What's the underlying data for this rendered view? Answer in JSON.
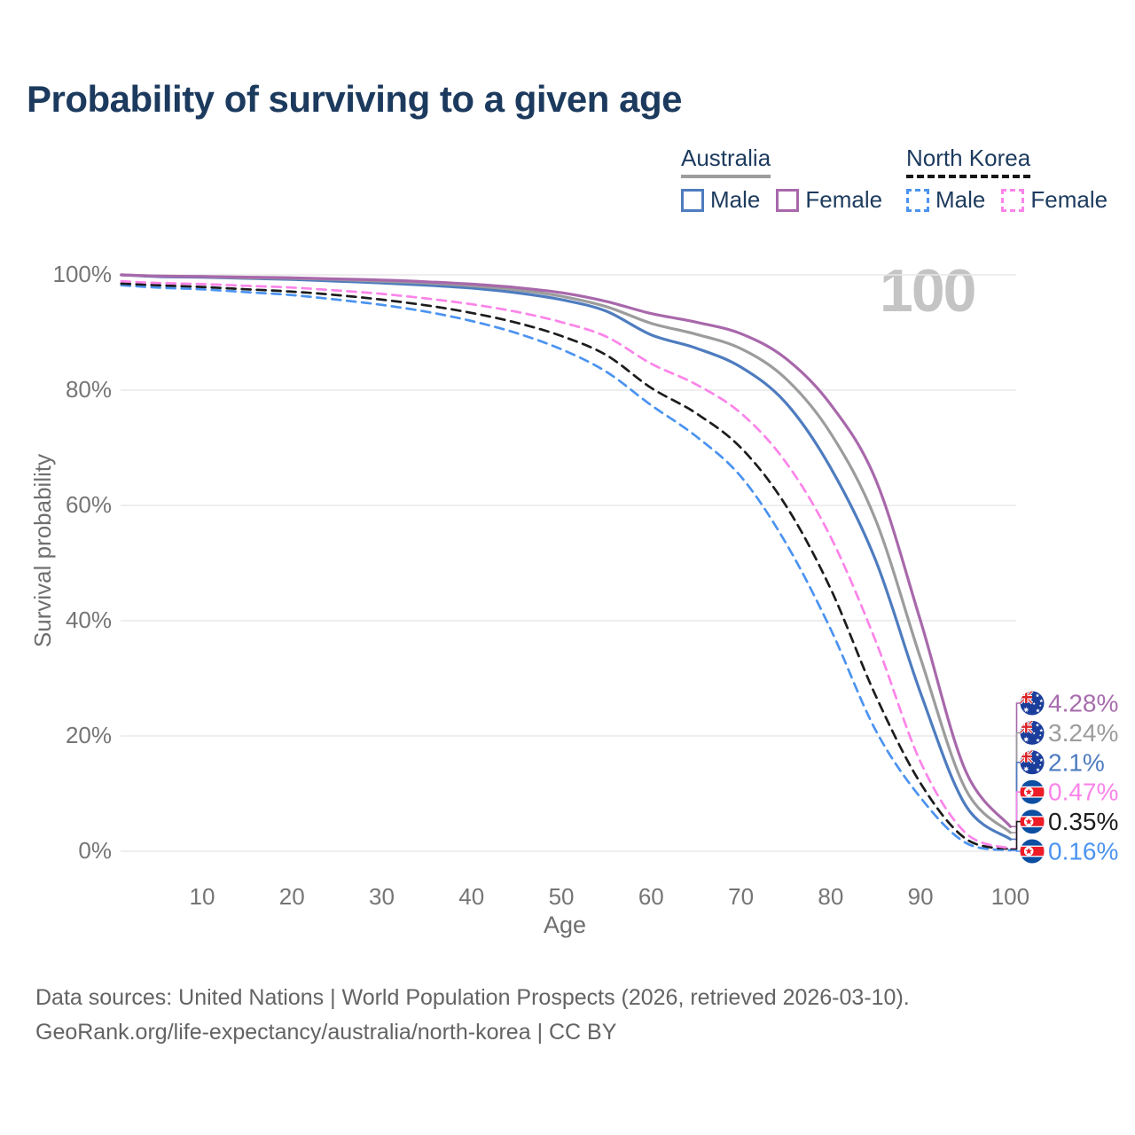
{
  "title": "Probability of surviving to a given age",
  "watermark": "100",
  "legend": {
    "groups": [
      {
        "label": "Australia",
        "line_style": "solid",
        "underline_color": "#9c9c9c",
        "items": [
          {
            "label": "Male",
            "color": "#4e7cbf"
          },
          {
            "label": "Female",
            "color": "#a868ab"
          }
        ]
      },
      {
        "label": "North Korea",
        "line_style": "dashed",
        "underline_color": "#161616",
        "items": [
          {
            "label": "Male",
            "color": "#4b93f0"
          },
          {
            "label": "Female",
            "color": "#fb84e9"
          }
        ]
      }
    ]
  },
  "chart_data": {
    "type": "line",
    "title": "Probability of surviving to a given age",
    "xlabel": "Age",
    "ylabel": "Survival probability",
    "xlim": [
      0,
      101
    ],
    "ylim": [
      0,
      100
    ],
    "grid": "horizontal",
    "x_tick_values": [
      10,
      20,
      30,
      40,
      50,
      60,
      70,
      80,
      90,
      100
    ],
    "x_tick_labels": [
      "10",
      "20",
      "30",
      "40",
      "50",
      "60",
      "70",
      "80",
      "90",
      "100"
    ],
    "y_tick_values": [
      100,
      80,
      60,
      40,
      20,
      0
    ],
    "y_tick_labels": [
      "100%",
      "80%",
      "60%",
      "40%",
      "20%",
      "0%"
    ],
    "ages": [
      1,
      5,
      10,
      15,
      20,
      25,
      30,
      35,
      40,
      45,
      50,
      55,
      60,
      65,
      70,
      75,
      80,
      85,
      90,
      95,
      100
    ],
    "series": [
      {
        "name": "Australia Female",
        "country": "Australia",
        "sex": "Female",
        "flag": "au",
        "color": "#a868ab",
        "label_color": "#a76cad",
        "line": "solid",
        "end_label": "4.28%",
        "values": [
          100,
          99.8,
          99.7,
          99.6,
          99.5,
          99.3,
          99.1,
          98.8,
          98.4,
          97.8,
          96.9,
          95.4,
          93.3,
          91.8,
          89.8,
          85.5,
          77.5,
          64.5,
          40,
          14,
          4.28
        ]
      },
      {
        "name": "Australia Both sexes",
        "country": "Australia",
        "sex": "Both",
        "flag": "au",
        "color": "#9c9c9c",
        "label_color": "#9c9c9c",
        "line": "solid",
        "end_label": "3.24%",
        "values": [
          100,
          99.8,
          99.7,
          99.5,
          99.4,
          99.2,
          98.9,
          98.6,
          98.1,
          97.4,
          96.3,
          94.5,
          91.6,
          89.7,
          87.2,
          82,
          72.5,
          57.5,
          33.5,
          10.8,
          3.24
        ]
      },
      {
        "name": "Australia Male",
        "country": "Australia",
        "sex": "Male",
        "flag": "au",
        "color": "#4e7cbf",
        "label_color": "#4e7cbf",
        "line": "solid",
        "end_label": "2.1%",
        "values": [
          100,
          99.7,
          99.6,
          99.4,
          99.2,
          98.9,
          98.6,
          98.2,
          97.7,
          96.9,
          95.7,
          93.7,
          89.6,
          87.3,
          84,
          77.8,
          66.5,
          50.5,
          27.5,
          8,
          2.1
        ]
      },
      {
        "name": "North Korea Female",
        "country": "North Korea",
        "sex": "Female",
        "flag": "kp",
        "color": "#fb84e9",
        "label_color": "#fb84e9",
        "line": "dashed",
        "end_label": "0.47%",
        "values": [
          98.9,
          98.6,
          98.4,
          98.1,
          97.8,
          97.3,
          96.7,
          95.9,
          94.9,
          93.6,
          91.8,
          89.3,
          84.6,
          81,
          76,
          67.5,
          54.5,
          36.5,
          15.5,
          3.2,
          0.47
        ]
      },
      {
        "name": "North Korea Both sexes",
        "country": "North Korea",
        "sex": "Both",
        "flag": "kp",
        "color": "#1c1c1c",
        "label_color": "#1c1c1c",
        "line": "dashed",
        "end_label": "0.35%",
        "values": [
          98.5,
          98.2,
          97.9,
          97.5,
          97.1,
          96.5,
          95.7,
          94.7,
          93.4,
          91.7,
          89.4,
          86.1,
          80.4,
          76,
          70,
          60,
          45.5,
          27,
          11.8,
          2.2,
          0.35
        ]
      },
      {
        "name": "North Korea Male",
        "country": "North Korea",
        "sex": "Male",
        "flag": "kp",
        "color": "#4b93f0",
        "label_color": "#4b93f0",
        "line": "dashed",
        "end_label": "0.16%",
        "values": [
          98.2,
          97.8,
          97.5,
          97,
          96.5,
          95.7,
          94.8,
          93.6,
          92,
          89.9,
          87.1,
          83.2,
          77.4,
          72,
          65,
          53.5,
          38.5,
          21,
          9.3,
          1.5,
          0.16
        ]
      }
    ],
    "legend_position": "top-right"
  },
  "footer": {
    "line1": "Data sources: United Nations | World Population Prospects (2026, retrieved 2026-03-10).",
    "line2": "GeoRank.org/life-expectancy/australia/north-korea | CC BY"
  }
}
